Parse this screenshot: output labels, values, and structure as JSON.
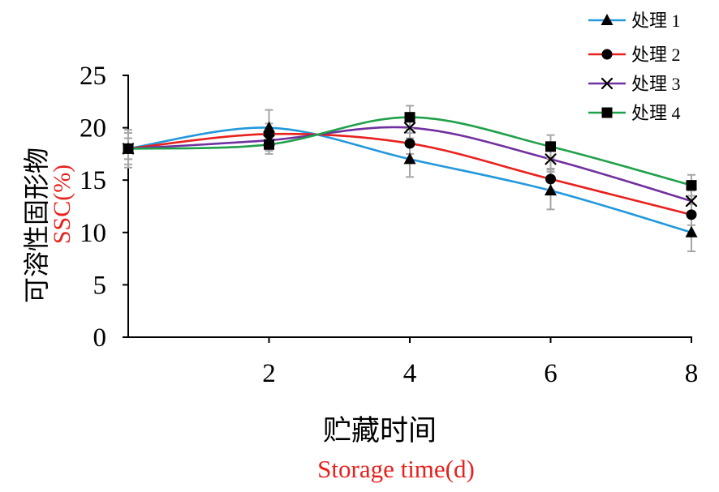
{
  "chart_data": {
    "type": "line",
    "line_style": "smooth",
    "x": [
      0,
      2,
      4,
      6,
      8
    ],
    "xlim": [
      0,
      8
    ],
    "ylim": [
      0,
      25
    ],
    "xticks": [
      2,
      4,
      6,
      8
    ],
    "yticks": [
      0,
      5,
      10,
      15,
      20,
      25
    ],
    "xlabel": "贮藏时间",
    "xlabel_en": "Storage time(d)",
    "ylabel": "可溶性固形物",
    "ylabel_en": "SSC(%)",
    "grid": false,
    "legend_position": "top-right",
    "marker_color": "#000000",
    "error_bar_color": "#a6a6a6",
    "label_accent_color": "#e8211d",
    "series": [
      {
        "name": "处理 1",
        "marker": "triangle",
        "color": "#2398dc",
        "values": [
          18,
          20,
          17,
          14,
          10
        ],
        "error": [
          1.5,
          1.7,
          1.7,
          1.8,
          1.8
        ]
      },
      {
        "name": "处理 2",
        "marker": "circle",
        "color": "#e8211d",
        "values": [
          18,
          19.4,
          18.5,
          15.1,
          11.7
        ],
        "error": [
          1.0,
          1.0,
          1.0,
          1.0,
          1.0
        ]
      },
      {
        "name": "处理 3",
        "marker": "cross",
        "color": "#7030a0",
        "values": [
          18,
          18.8,
          20,
          17,
          13
        ],
        "error": [
          1.0,
          1.0,
          1.0,
          1.0,
          1.0
        ]
      },
      {
        "name": "处理 4",
        "marker": "square",
        "color": "#20a04a",
        "values": [
          18,
          18.4,
          21,
          18.2,
          14.5
        ],
        "error": [
          1.8,
          0.9,
          1.1,
          1.1,
          1.0
        ]
      }
    ]
  }
}
